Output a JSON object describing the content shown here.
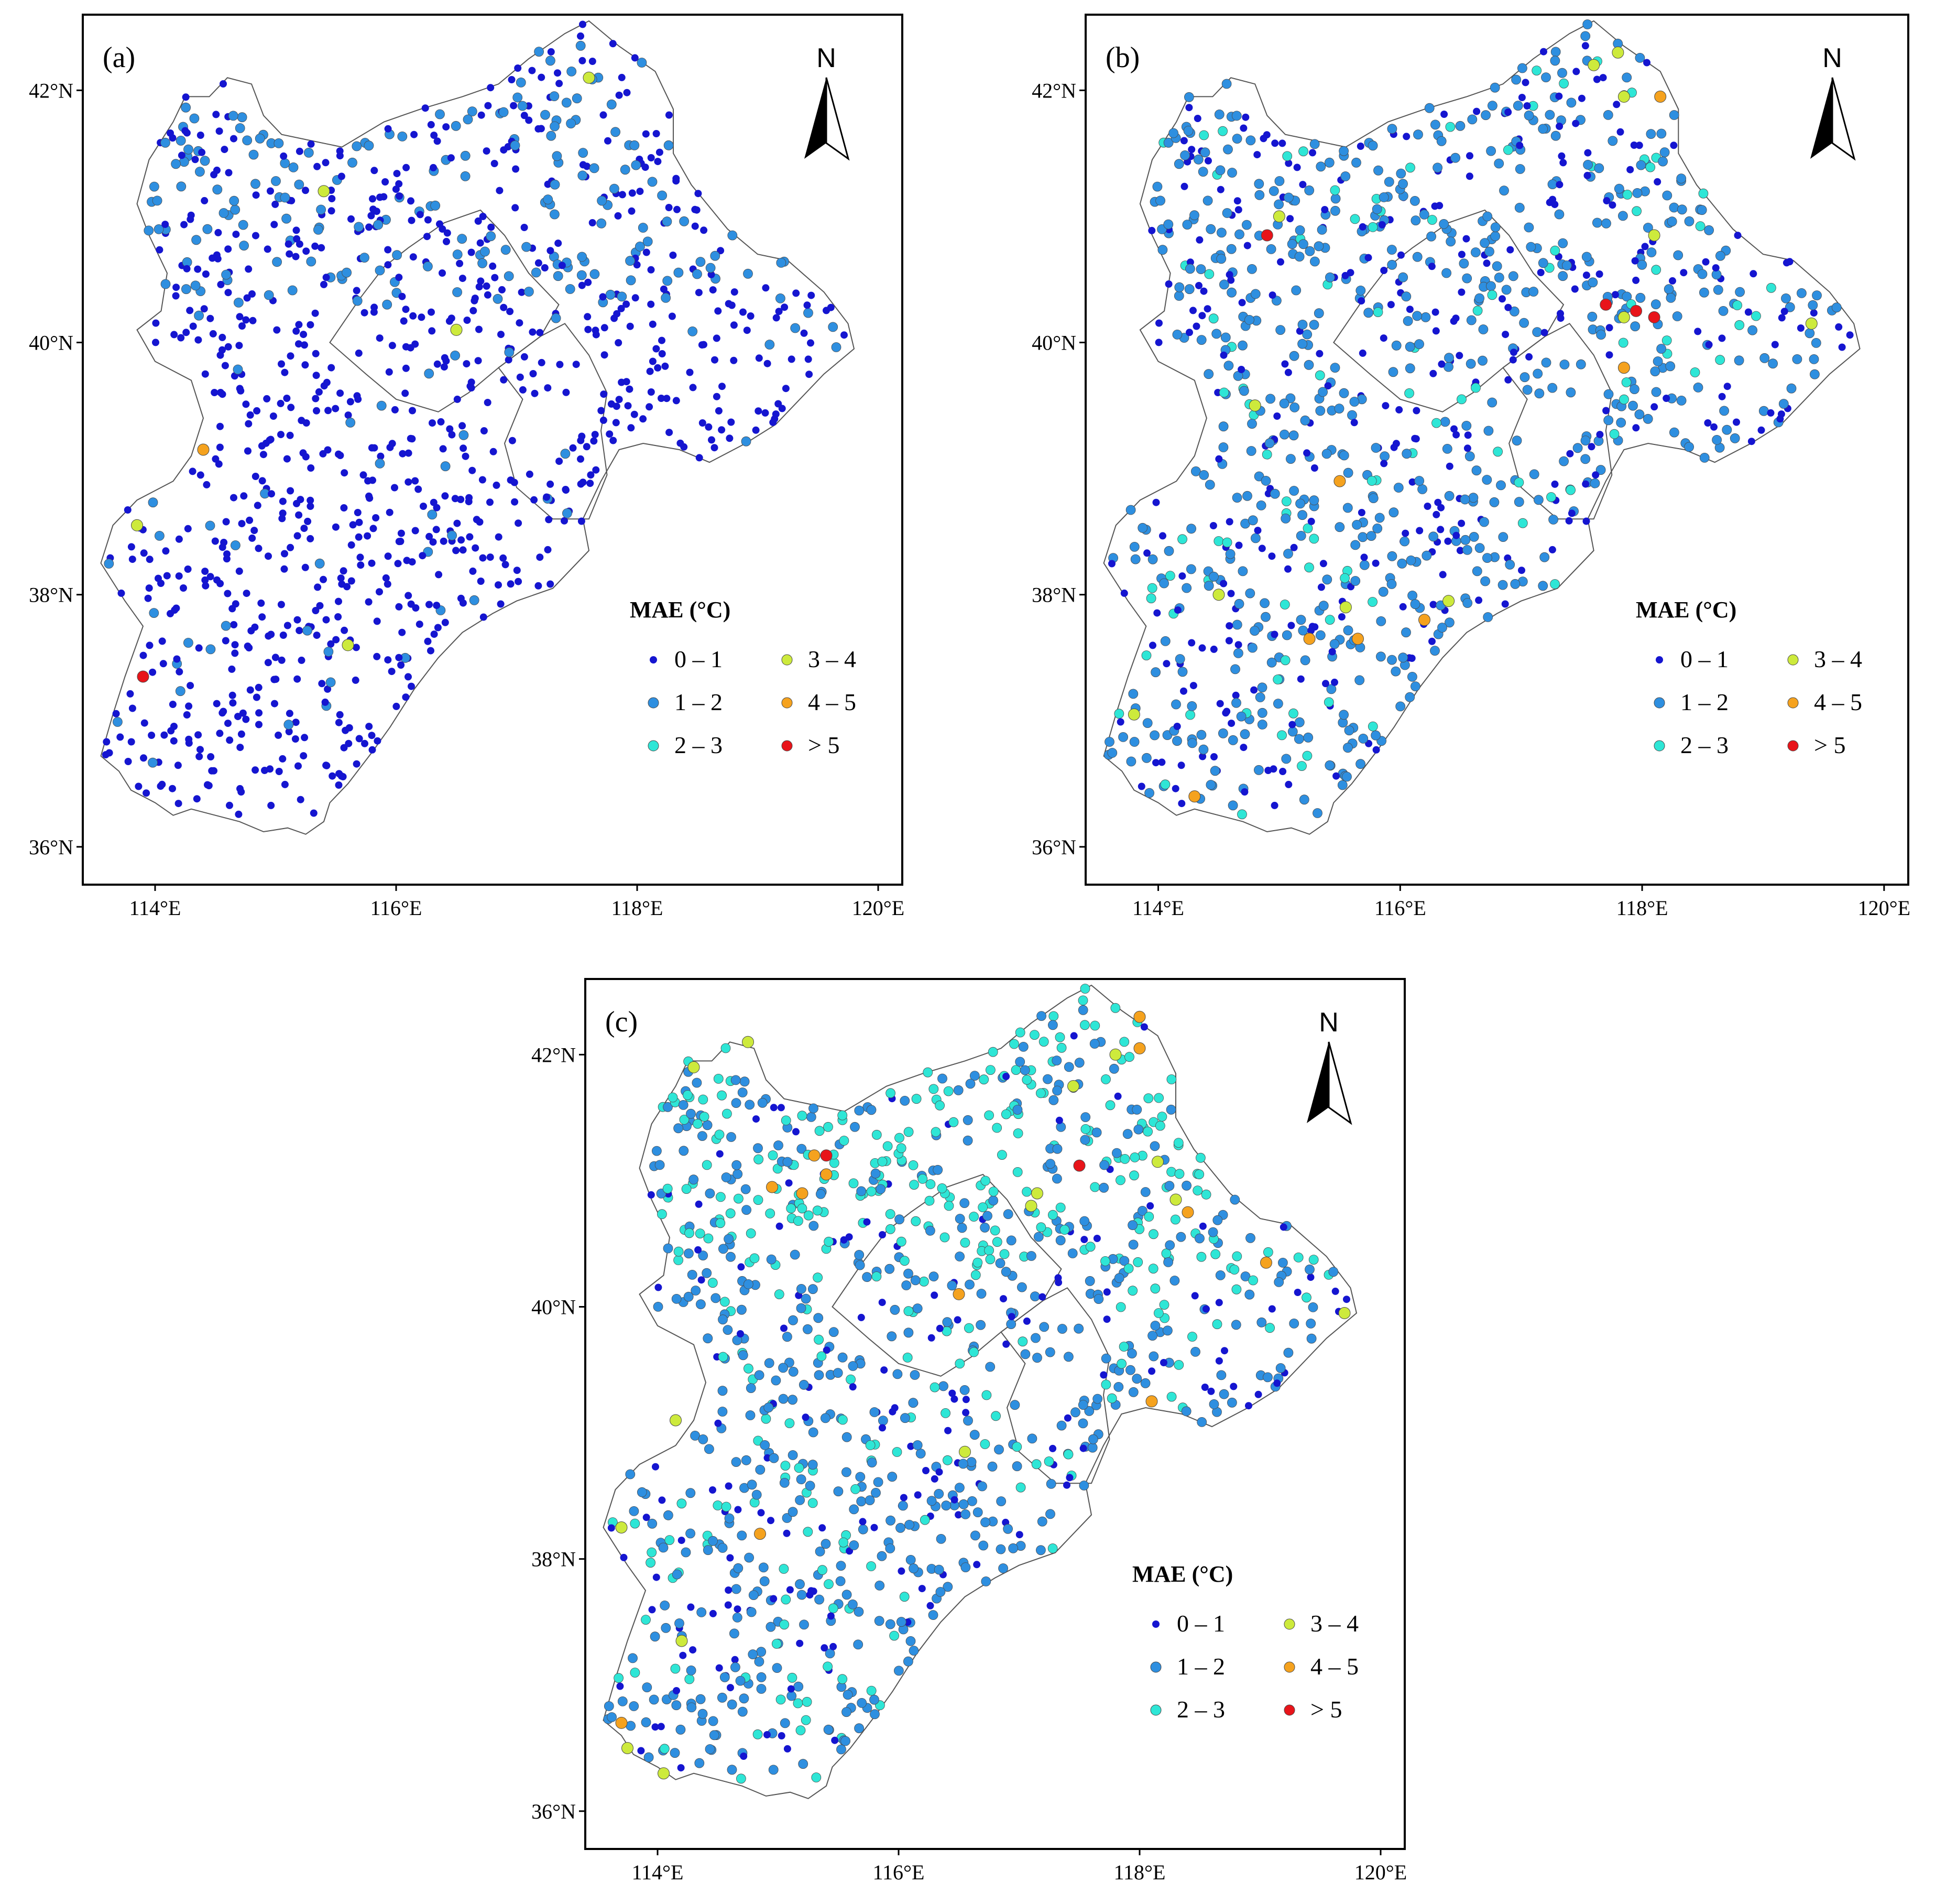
{
  "figure": {
    "legend_title": "MAE (°C)",
    "north_label": "N",
    "x_ticks": [
      "114°E",
      "116°E",
      "118°E",
      "120°E"
    ],
    "y_ticks": [
      "36°N",
      "38°N",
      "40°N",
      "42°N"
    ],
    "lon_range": [
      113.4,
      120.2
    ],
    "lat_range": [
      35.7,
      42.6
    ],
    "categories": [
      {
        "label": "0 – 1",
        "color": "#1515d0"
      },
      {
        "label": "1 – 2",
        "color": "#2e8fe0"
      },
      {
        "label": "2 – 3",
        "color": "#2ee6d6"
      },
      {
        "label": "3 – 4",
        "color": "#cdea3c"
      },
      {
        "label": "4 – 5",
        "color": "#f5a21e"
      },
      {
        "label": "> 5",
        "color": "#e8141a"
      }
    ]
  },
  "panels": [
    {
      "label": "(a)",
      "outliers": [
        {
          "lon": 113.9,
          "lat": 37.35,
          "cat": 5
        },
        {
          "lon": 114.4,
          "lat": 39.15,
          "cat": 4
        },
        {
          "lon": 113.85,
          "lat": 38.55,
          "cat": 3
        },
        {
          "lon": 115.4,
          "lat": 41.2,
          "cat": 3
        },
        {
          "lon": 117.6,
          "lat": 42.1,
          "cat": 3
        },
        {
          "lon": 116.5,
          "lat": 40.1,
          "cat": 3
        },
        {
          "lon": 115.6,
          "lat": 37.6,
          "cat": 3
        }
      ]
    },
    {
      "label": "(b)",
      "outliers": [
        {
          "lon": 114.9,
          "lat": 40.85,
          "cat": 5
        },
        {
          "lon": 117.7,
          "lat": 40.3,
          "cat": 5
        },
        {
          "lon": 117.95,
          "lat": 40.25,
          "cat": 5
        },
        {
          "lon": 118.1,
          "lat": 40.2,
          "cat": 5
        },
        {
          "lon": 118.15,
          "lat": 41.95,
          "cat": 4
        },
        {
          "lon": 117.85,
          "lat": 39.8,
          "cat": 4
        },
        {
          "lon": 115.5,
          "lat": 38.9,
          "cat": 4
        },
        {
          "lon": 116.2,
          "lat": 37.8,
          "cat": 4
        },
        {
          "lon": 115.65,
          "lat": 37.65,
          "cat": 4
        },
        {
          "lon": 115.25,
          "lat": 37.65,
          "cat": 4
        },
        {
          "lon": 114.3,
          "lat": 36.4,
          "cat": 4
        },
        {
          "lon": 117.8,
          "lat": 42.3,
          "cat": 3
        },
        {
          "lon": 117.85,
          "lat": 41.95,
          "cat": 3
        },
        {
          "lon": 117.6,
          "lat": 42.2,
          "cat": 3
        },
        {
          "lon": 118.1,
          "lat": 40.85,
          "cat": 3
        },
        {
          "lon": 117.85,
          "lat": 40.2,
          "cat": 3
        },
        {
          "lon": 119.4,
          "lat": 40.15,
          "cat": 3
        },
        {
          "lon": 114.8,
          "lat": 39.5,
          "cat": 3
        },
        {
          "lon": 115.55,
          "lat": 37.9,
          "cat": 3
        },
        {
          "lon": 114.5,
          "lat": 38.0,
          "cat": 3
        },
        {
          "lon": 113.8,
          "lat": 37.05,
          "cat": 3
        },
        {
          "lon": 115.0,
          "lat": 41.0,
          "cat": 3
        },
        {
          "lon": 116.4,
          "lat": 37.95,
          "cat": 3
        }
      ]
    },
    {
      "label": "(c)",
      "outliers": [
        {
          "lon": 115.4,
          "lat": 41.2,
          "cat": 5
        },
        {
          "lon": 117.5,
          "lat": 41.12,
          "cat": 5
        },
        {
          "lon": 118.0,
          "lat": 42.3,
          "cat": 4
        },
        {
          "lon": 118.0,
          "lat": 42.05,
          "cat": 4
        },
        {
          "lon": 115.3,
          "lat": 41.2,
          "cat": 4
        },
        {
          "lon": 115.4,
          "lat": 41.05,
          "cat": 4
        },
        {
          "lon": 114.95,
          "lat": 40.95,
          "cat": 4
        },
        {
          "lon": 115.2,
          "lat": 40.9,
          "cat": 4
        },
        {
          "lon": 118.4,
          "lat": 40.75,
          "cat": 4
        },
        {
          "lon": 116.5,
          "lat": 40.1,
          "cat": 4
        },
        {
          "lon": 119.05,
          "lat": 40.35,
          "cat": 4
        },
        {
          "lon": 118.1,
          "lat": 39.25,
          "cat": 4
        },
        {
          "lon": 114.85,
          "lat": 38.2,
          "cat": 4
        },
        {
          "lon": 113.7,
          "lat": 36.7,
          "cat": 4
        },
        {
          "lon": 114.75,
          "lat": 42.1,
          "cat": 3
        },
        {
          "lon": 114.3,
          "lat": 41.9,
          "cat": 3
        },
        {
          "lon": 117.15,
          "lat": 40.9,
          "cat": 3
        },
        {
          "lon": 117.8,
          "lat": 42.0,
          "cat": 3
        },
        {
          "lon": 117.45,
          "lat": 41.75,
          "cat": 3
        },
        {
          "lon": 118.15,
          "lat": 41.15,
          "cat": 3
        },
        {
          "lon": 118.3,
          "lat": 40.85,
          "cat": 3
        },
        {
          "lon": 117.1,
          "lat": 40.8,
          "cat": 3
        },
        {
          "lon": 119.7,
          "lat": 39.95,
          "cat": 3
        },
        {
          "lon": 114.15,
          "lat": 39.1,
          "cat": 3
        },
        {
          "lon": 113.7,
          "lat": 38.25,
          "cat": 3
        },
        {
          "lon": 114.2,
          "lat": 37.35,
          "cat": 3
        },
        {
          "lon": 114.05,
          "lat": 36.3,
          "cat": 3
        },
        {
          "lon": 113.75,
          "lat": 36.5,
          "cat": 3
        },
        {
          "lon": 116.55,
          "lat": 38.85,
          "cat": 3
        }
      ]
    }
  ]
}
